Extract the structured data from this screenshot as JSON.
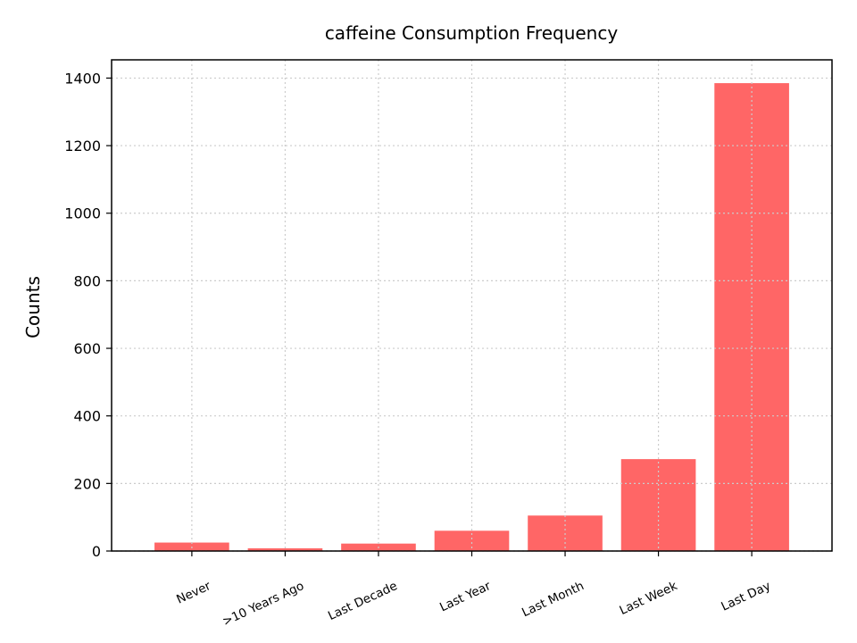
{
  "chart_data": {
    "type": "bar",
    "title": "caffeine Consumption Frequency",
    "xlabel": "",
    "ylabel": "Counts",
    "categories": [
      "Never",
      ">10 Years Ago",
      "Last Decade",
      "Last Year",
      "Last Month",
      "Last Week",
      "Last Day"
    ],
    "values": [
      25,
      8,
      22,
      60,
      105,
      272,
      1385
    ],
    "ylim": [
      0,
      1454
    ],
    "yticks": [
      0,
      200,
      400,
      600,
      800,
      1000,
      1200,
      1400
    ],
    "grid": true,
    "bar_color": "#ff6666",
    "x_tick_rotation_deg": 25
  }
}
